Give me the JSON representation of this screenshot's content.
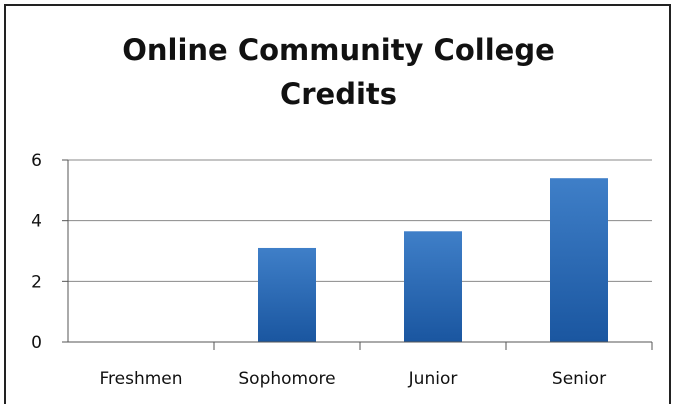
{
  "chart_data": {
    "type": "bar",
    "title_line1": "Online Community College",
    "title_line2": "Credits",
    "categories": [
      "Freshmen",
      "Sophomore",
      "Junior",
      "Senior"
    ],
    "values": [
      0,
      3.1,
      3.65,
      5.4
    ],
    "yticks": [
      "0",
      "2",
      "4",
      "6"
    ],
    "ylim": [
      0,
      6
    ],
    "grid": true,
    "xlabel": "",
    "ylabel": "",
    "bar_color_top": "#3f7fc8",
    "bar_color_bottom": "#1a56a0"
  }
}
